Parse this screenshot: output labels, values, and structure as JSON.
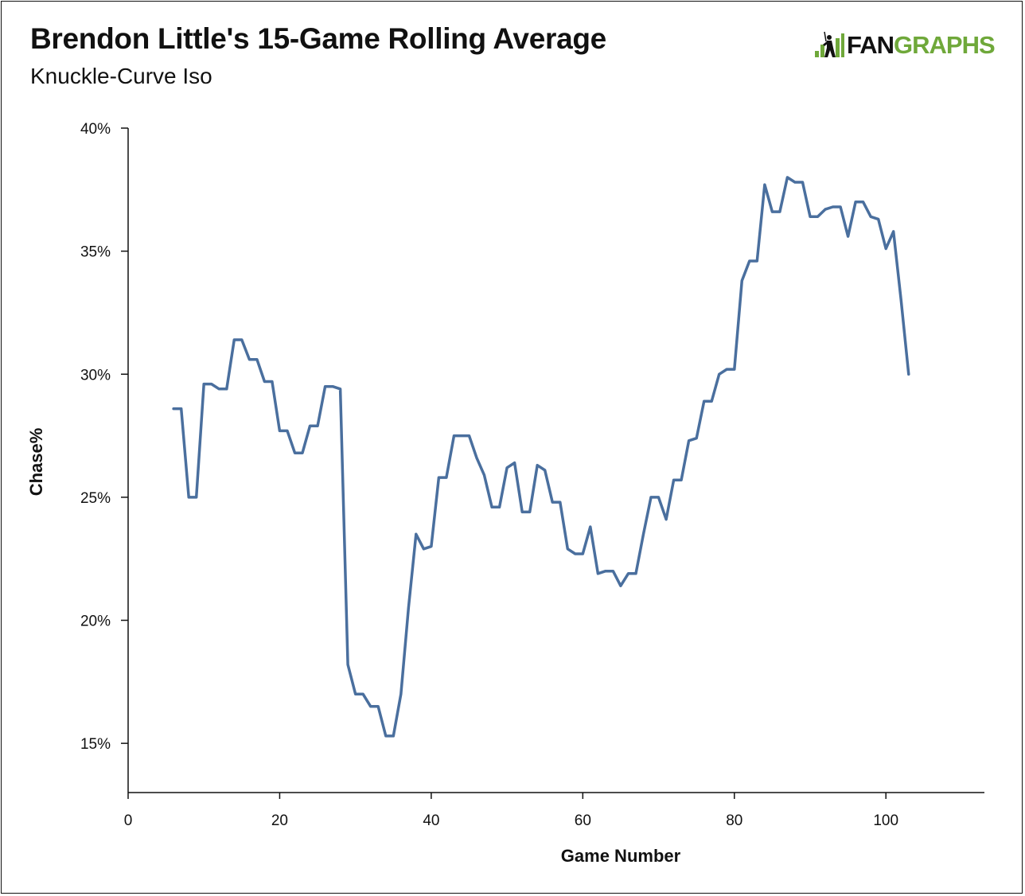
{
  "header": {
    "title": "Brendon Little's 15-Game Rolling Average",
    "subtitle": "Knuckle-Curve Iso"
  },
  "logo": {
    "icon": "batter-icon",
    "text_dark": "FAN",
    "text_green": "GRAPHS",
    "brand_color": "#6fa83a"
  },
  "chart_data": {
    "type": "line",
    "title": "Brendon Little's 15-Game Rolling Average",
    "subtitle": "Knuckle-Curve Iso",
    "xlabel": "Game Number",
    "ylabel": "Chase%",
    "xlim": [
      0,
      113
    ],
    "ylim": [
      13,
      40
    ],
    "x_ticks": [
      0,
      20,
      40,
      60,
      80,
      100
    ],
    "y_ticks": [
      15,
      20,
      25,
      30,
      35,
      40
    ],
    "y_tick_labels": [
      "15%",
      "20%",
      "25%",
      "30%",
      "35%",
      "40%"
    ],
    "grid": false,
    "legend": "none",
    "line_color": "#4a6f9e",
    "series": [
      {
        "x": [
          6,
          7,
          8,
          9,
          10,
          11,
          12,
          13,
          14,
          15,
          16,
          17,
          18,
          19,
          20,
          21,
          22,
          23,
          24,
          25,
          26,
          27,
          28,
          29,
          30,
          31,
          32,
          33,
          34,
          35,
          36,
          37,
          38,
          39,
          40,
          41,
          42,
          43,
          44,
          45,
          46,
          47,
          48,
          49,
          50,
          51,
          52,
          53,
          54,
          55,
          56,
          57,
          58,
          59,
          60,
          61,
          62,
          63,
          64,
          65,
          66,
          67,
          68,
          69,
          70,
          71,
          72,
          73,
          74,
          75,
          76,
          77,
          78,
          79,
          80,
          81,
          82,
          83,
          84,
          85,
          86,
          87,
          88,
          89,
          90,
          91,
          92,
          93,
          94,
          95,
          96,
          97,
          98,
          99,
          100,
          101,
          102,
          103
        ],
        "values": [
          28.6,
          28.6,
          25.0,
          25.0,
          29.6,
          29.6,
          29.4,
          29.4,
          31.4,
          31.4,
          30.6,
          30.6,
          29.7,
          29.7,
          27.7,
          27.7,
          26.8,
          26.8,
          27.9,
          27.9,
          29.5,
          29.5,
          29.4,
          18.2,
          17.0,
          17.0,
          16.5,
          16.5,
          15.3,
          15.3,
          17.0,
          20.5,
          23.5,
          22.9,
          23.0,
          25.8,
          25.8,
          27.5,
          27.5,
          27.5,
          26.6,
          25.9,
          24.6,
          24.6,
          26.2,
          26.4,
          24.4,
          24.4,
          26.3,
          26.1,
          24.8,
          24.8,
          22.9,
          22.7,
          22.7,
          23.8,
          21.9,
          22.0,
          22.0,
          21.4,
          21.9,
          21.9,
          23.5,
          25.0,
          25.0,
          24.1,
          25.7,
          25.7,
          27.3,
          27.4,
          28.9,
          28.9,
          30.0,
          30.2,
          30.2,
          33.8,
          34.6,
          34.6,
          37.7,
          36.6,
          36.6,
          38.0,
          37.8,
          37.8,
          36.4,
          36.4,
          36.7,
          36.8,
          36.8,
          35.6,
          37.0,
          37.0,
          36.4,
          36.3,
          35.1,
          35.8,
          33.0,
          30.0
        ]
      }
    ]
  }
}
